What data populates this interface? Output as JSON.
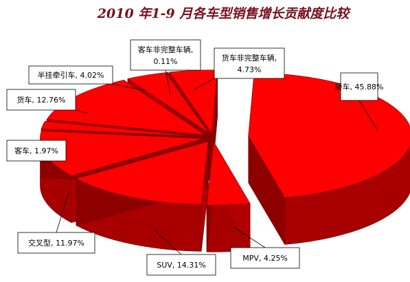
{
  "chart_data": {
    "type": "pie",
    "title": "2010 年1-9 月各车型销售增长贡献度比较",
    "slices": [
      {
        "name": "轿车",
        "value": 45.88,
        "label": "轿车, 45.88%"
      },
      {
        "name": "MPV",
        "value": 4.25,
        "label": "MPV, 4.25%"
      },
      {
        "name": "SUV",
        "value": 14.31,
        "label": "SUV, 14.31%"
      },
      {
        "name": "交叉型",
        "value": 11.97,
        "label": "交叉型, 11.97%"
      },
      {
        "name": "客车",
        "value": 1.97,
        "label": "客车, 1.97%"
      },
      {
        "name": "货车",
        "value": 12.76,
        "label": "货车, 12.76%"
      },
      {
        "name": "半挂牵引车",
        "value": 4.02,
        "label": "半挂牵引车, 4.02%"
      },
      {
        "name": "客车非完整车辆",
        "value": 0.11,
        "label": "客车非完整车辆, 0.11%"
      },
      {
        "name": "货车非完整车辆",
        "value": 4.73,
        "label": "货车非完整车辆, 4.73%"
      }
    ],
    "colors": {
      "top": "#ff0000",
      "side": "#a80000",
      "edge": "#6e0000",
      "title": "#7a1020"
    }
  }
}
